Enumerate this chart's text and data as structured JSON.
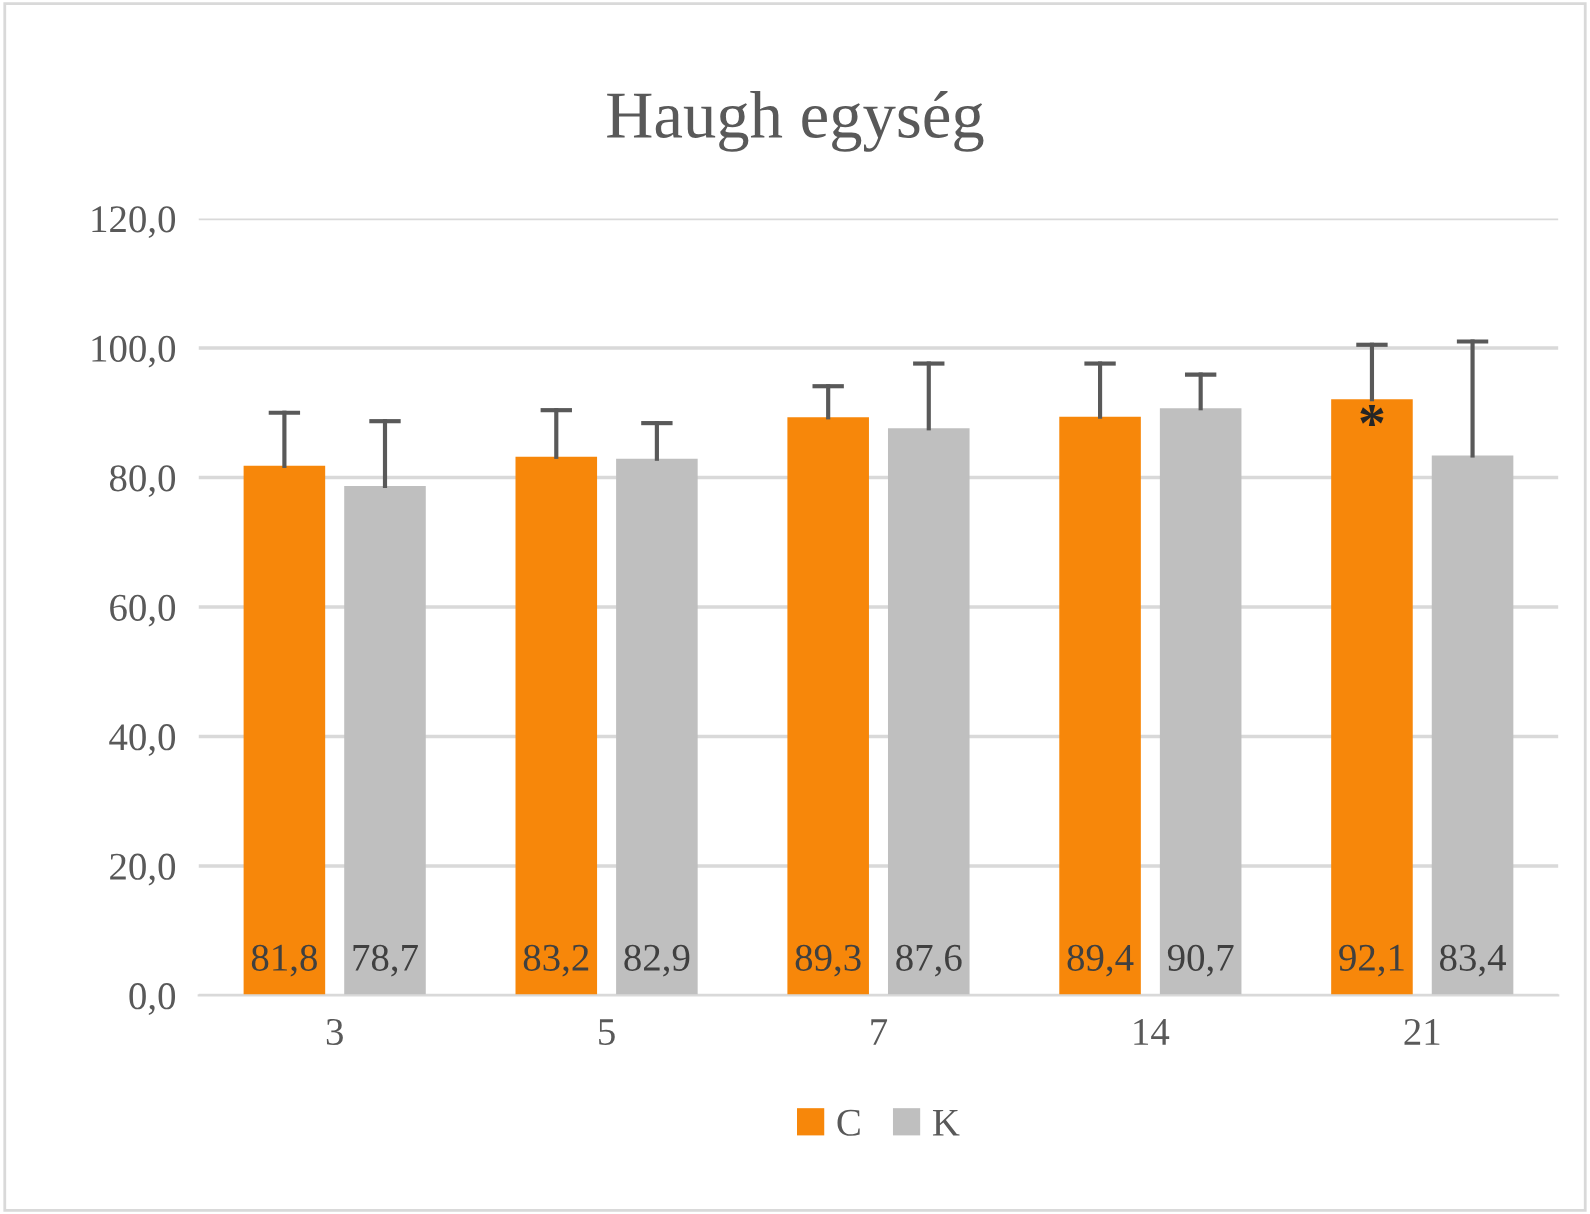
{
  "chart_data": {
    "type": "bar",
    "title": "Haugh egység",
    "categories": [
      "3",
      "5",
      "7",
      "14",
      "21"
    ],
    "series": [
      {
        "name": "C",
        "color": "#f7870a",
        "values": [
          81.8,
          83.2,
          89.3,
          89.4,
          92.1
        ],
        "value_labels": [
          "81,8",
          "83,2",
          "89,3",
          "89,4",
          "92,1"
        ],
        "errors": [
          [
            81.8,
            90.0
          ],
          [
            83.2,
            90.4
          ],
          [
            89.3,
            94.1
          ],
          [
            89.4,
            97.6
          ],
          [
            92.1,
            100.5
          ]
        ]
      },
      {
        "name": "K",
        "color": "#bfbfbf",
        "values": [
          78.7,
          82.9,
          87.6,
          90.7,
          83.4
        ],
        "value_labels": [
          "78,7",
          "82,9",
          "87,6",
          "90,7",
          "83,4"
        ],
        "errors": [
          [
            78.7,
            88.7
          ],
          [
            82.9,
            88.4
          ],
          [
            87.6,
            97.6
          ],
          [
            90.7,
            95.9
          ],
          [
            83.4,
            101.0
          ]
        ]
      }
    ],
    "ylim": [
      0,
      120
    ],
    "yticks": [
      {
        "value": 0,
        "label": "0,0"
      },
      {
        "value": 20,
        "label": "20,0"
      },
      {
        "value": 40,
        "label": "40,0"
      },
      {
        "value": 60,
        "label": "60,0"
      },
      {
        "value": 80,
        "label": "80,0"
      },
      {
        "value": 100,
        "label": "100,0"
      },
      {
        "value": 120,
        "label": "120,0"
      }
    ],
    "grid": "y",
    "legend": "bottom",
    "annotations": [
      "*"
    ]
  }
}
